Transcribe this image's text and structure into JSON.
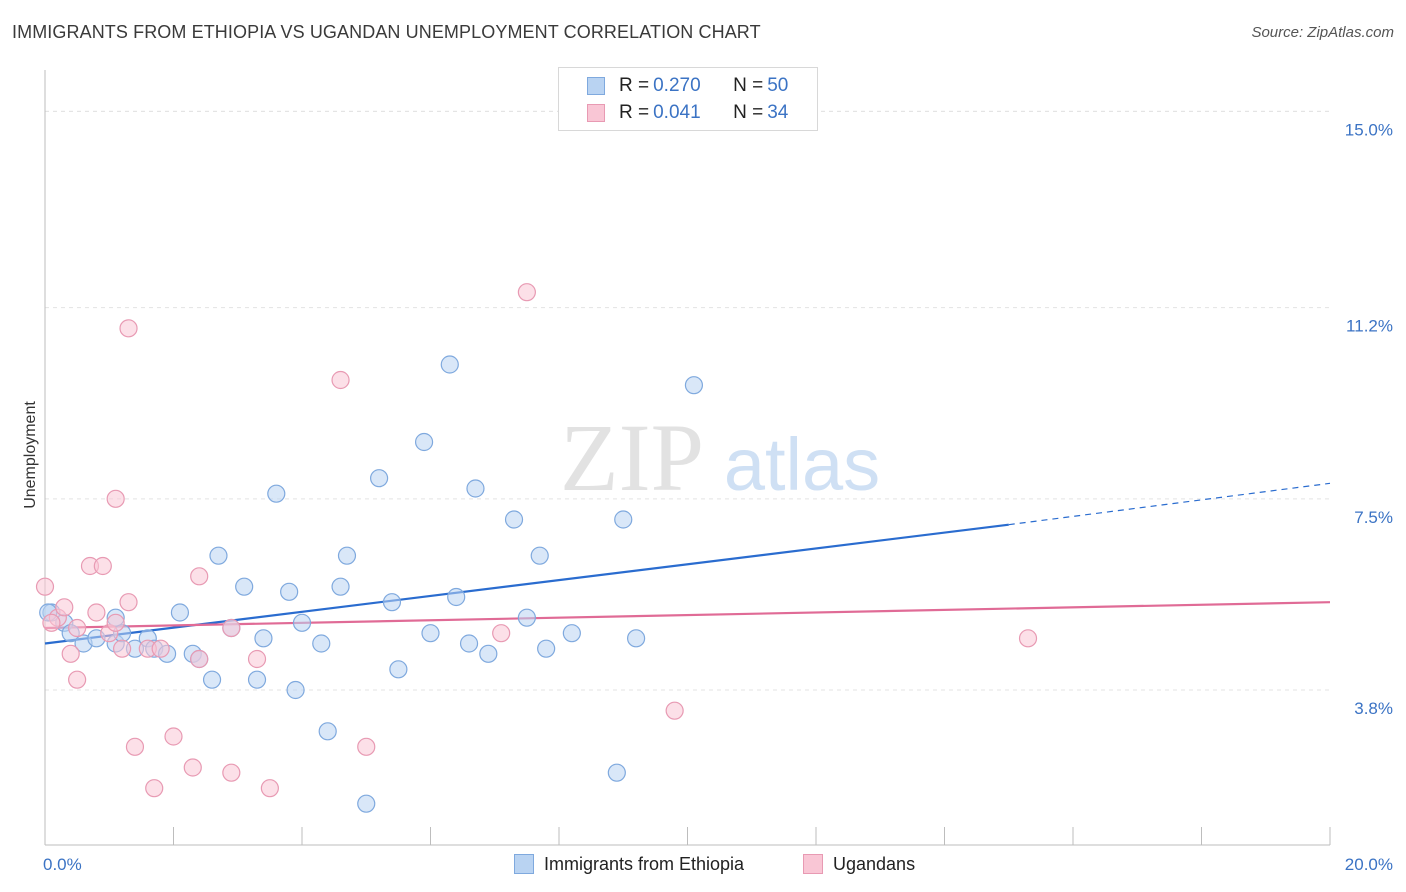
{
  "title": "IMMIGRANTS FROM ETHIOPIA VS UGANDAN UNEMPLOYMENT CORRELATION CHART",
  "source": "Source: ZipAtlas.com",
  "watermark": {
    "zip": "ZIP",
    "atlas": "atlas"
  },
  "legend": {
    "rows": [
      {
        "r_label": "R =",
        "r_value": "0.270",
        "n_label": "N =",
        "n_value": "50"
      },
      {
        "r_label": "R =",
        "r_value": "0.041",
        "n_label": "N =",
        "n_value": "34"
      }
    ]
  },
  "colors": {
    "blue_fill": "#b9d3f2",
    "blue_stroke": "#7fa9de",
    "blue_line": "#2a6ccf",
    "pink_fill": "#f9c6d5",
    "pink_stroke": "#e89ab3",
    "pink_line": "#e06b96",
    "grid": "#e3e3e3",
    "tick_text": "#3b73c4"
  },
  "chart_data": {
    "type": "scatter",
    "title": "IMMIGRANTS FROM ETHIOPIA VS UGANDAN UNEMPLOYMENT CORRELATION CHART",
    "xlabel": "",
    "ylabel": "Unemployment",
    "xlim": [
      0,
      20
    ],
    "ylim": [
      0.8,
      15.8
    ],
    "x_tick_labels": [
      {
        "value": 0,
        "label": "0.0%"
      },
      {
        "value": 20,
        "label": "20.0%"
      }
    ],
    "y_tick_labels": [
      {
        "value": 3.8,
        "label": "3.8%"
      },
      {
        "value": 7.5,
        "label": "7.5%"
      },
      {
        "value": 11.2,
        "label": "11.2%"
      },
      {
        "value": 15.0,
        "label": "15.0%"
      }
    ],
    "y_gridlines": [
      3.8,
      7.5,
      11.2,
      15.0
    ],
    "x_minor_ticks": [
      2,
      4,
      6,
      8,
      10,
      12,
      14,
      16,
      18,
      20
    ],
    "grid": true,
    "legend_position": "top-center",
    "series": [
      {
        "name": "Immigrants from Ethiopia",
        "color": "#b9d3f2",
        "points": [
          [
            0.1,
            5.3
          ],
          [
            0.3,
            5.1
          ],
          [
            0.4,
            4.9
          ],
          [
            0.6,
            4.7
          ],
          [
            0.8,
            4.8
          ],
          [
            1.1,
            5.2
          ],
          [
            1.1,
            4.7
          ],
          [
            1.2,
            4.9
          ],
          [
            1.4,
            4.6
          ],
          [
            1.6,
            4.8
          ],
          [
            1.7,
            4.6
          ],
          [
            1.9,
            4.5
          ],
          [
            2.1,
            5.3
          ],
          [
            2.3,
            4.5
          ],
          [
            2.4,
            4.4
          ],
          [
            2.6,
            4.0
          ],
          [
            2.7,
            6.4
          ],
          [
            2.9,
            5.0
          ],
          [
            3.1,
            5.8
          ],
          [
            3.3,
            4.0
          ],
          [
            3.4,
            4.8
          ],
          [
            3.6,
            7.6
          ],
          [
            3.8,
            5.7
          ],
          [
            3.9,
            3.8
          ],
          [
            4.0,
            5.1
          ],
          [
            4.3,
            4.7
          ],
          [
            4.4,
            3.0
          ],
          [
            4.6,
            5.8
          ],
          [
            4.7,
            6.4
          ],
          [
            5.0,
            1.6
          ],
          [
            5.2,
            7.9
          ],
          [
            5.4,
            5.5
          ],
          [
            5.5,
            4.2
          ],
          [
            5.9,
            8.6
          ],
          [
            6.0,
            4.9
          ],
          [
            6.3,
            10.1
          ],
          [
            6.4,
            5.6
          ],
          [
            6.6,
            4.7
          ],
          [
            6.7,
            7.7
          ],
          [
            6.9,
            4.5
          ],
          [
            7.3,
            7.1
          ],
          [
            7.5,
            5.2
          ],
          [
            7.7,
            6.4
          ],
          [
            7.8,
            4.6
          ],
          [
            8.2,
            4.9
          ],
          [
            8.9,
            2.2
          ],
          [
            9.0,
            7.1
          ],
          [
            9.2,
            4.8
          ],
          [
            10.1,
            9.7
          ],
          [
            0.05,
            5.3
          ]
        ],
        "trend": {
          "x": [
            0,
            15
          ],
          "y": [
            4.7,
            7.0
          ],
          "dashed_extension_x": [
            15,
            20
          ],
          "dashed_extension_y": [
            7.0,
            7.8
          ]
        }
      },
      {
        "name": "Ugandans",
        "color": "#f9c6d5",
        "points": [
          [
            0.0,
            5.8
          ],
          [
            0.2,
            5.2
          ],
          [
            0.3,
            5.4
          ],
          [
            0.4,
            4.5
          ],
          [
            0.5,
            5.0
          ],
          [
            0.5,
            4.0
          ],
          [
            0.7,
            6.2
          ],
          [
            0.8,
            5.3
          ],
          [
            0.9,
            6.2
          ],
          [
            1.0,
            4.9
          ],
          [
            1.1,
            5.1
          ],
          [
            1.1,
            7.5
          ],
          [
            1.2,
            4.6
          ],
          [
            1.3,
            5.5
          ],
          [
            1.3,
            10.8
          ],
          [
            1.4,
            2.7
          ],
          [
            1.6,
            4.6
          ],
          [
            1.7,
            1.9
          ],
          [
            1.8,
            4.6
          ],
          [
            2.0,
            2.9
          ],
          [
            2.3,
            2.3
          ],
          [
            2.4,
            4.4
          ],
          [
            2.4,
            6.0
          ],
          [
            2.9,
            2.2
          ],
          [
            2.9,
            5.0
          ],
          [
            3.3,
            4.4
          ],
          [
            3.5,
            1.9
          ],
          [
            4.6,
            9.8
          ],
          [
            5.0,
            2.7
          ],
          [
            7.1,
            4.9
          ],
          [
            7.5,
            11.5
          ],
          [
            9.8,
            3.4
          ],
          [
            15.3,
            4.8
          ],
          [
            0.1,
            5.1
          ]
        ],
        "trend": {
          "x": [
            0,
            20
          ],
          "y": [
            5.0,
            5.5
          ]
        }
      }
    ]
  }
}
